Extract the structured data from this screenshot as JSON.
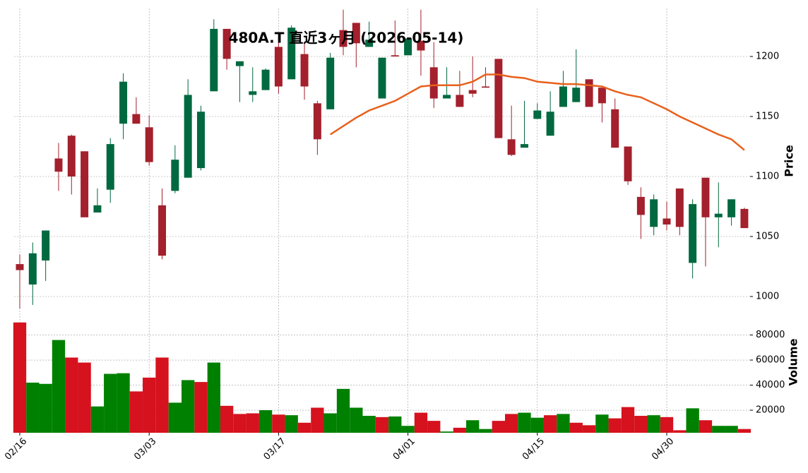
{
  "chart_data": {
    "type": "candlestick",
    "title": "480A.T 直近3ヶ月 (2026-05-14)",
    "categories": [
      "02/16",
      null,
      null,
      null,
      null,
      null,
      null,
      null,
      null,
      null,
      "03/03",
      null,
      null,
      null,
      null,
      null,
      null,
      null,
      null,
      null,
      "03/17",
      null,
      null,
      null,
      null,
      null,
      null,
      null,
      null,
      null,
      "04/01",
      null,
      null,
      null,
      null,
      null,
      null,
      null,
      null,
      null,
      "04/15",
      null,
      null,
      null,
      null,
      null,
      null,
      null,
      null,
      null,
      "04/30",
      null,
      null,
      null,
      null,
      null,
      null
    ],
    "open": [
      1027,
      1010,
      1030,
      1115,
      1134,
      1121,
      1070,
      1089,
      1144,
      1152,
      1141,
      1076,
      1088,
      1099,
      1107,
      1171,
      1223,
      1192,
      1168,
      1172,
      1208,
      1181,
      1202,
      1161,
      1156,
      1222,
      1228,
      1208,
      1165,
      1201,
      1201,
      1213,
      1191,
      1165,
      1168,
      1172,
      1175,
      1198,
      1131,
      1124,
      1148,
      1134,
      1158,
      1162,
      1181,
      1174,
      1156,
      1125,
      1083,
      1058,
      1065,
      1090,
      1028,
      1099,
      1066,
      1066,
      1073
    ],
    "high": [
      1035,
      1045,
      1055,
      1128,
      1135,
      1121,
      1090,
      1132,
      1186,
      1166,
      1151,
      1090,
      1126,
      1181,
      1159,
      1231,
      1223,
      1196,
      1191,
      1190,
      1215,
      1226,
      1211,
      1163,
      1203,
      1239,
      1228,
      1229,
      1199,
      1230,
      1215,
      1239,
      1212,
      1191,
      1188,
      1200,
      1191,
      1198,
      1159,
      1163,
      1161,
      1171,
      1188,
      1206,
      1181,
      1174,
      1165,
      1125,
      1091,
      1085,
      1079,
      1090,
      1081,
      1099,
      1095,
      1081,
      1074
    ],
    "low": [
      990,
      993,
      1013,
      1088,
      1085,
      1066,
      1070,
      1078,
      1131,
      1144,
      1109,
      1031,
      1086,
      1099,
      1105,
      1171,
      1189,
      1162,
      1162,
      1172,
      1169,
      1181,
      1164,
      1118,
      1156,
      1201,
      1191,
      1208,
      1165,
      1200,
      1201,
      1184,
      1157,
      1165,
      1158,
      1166,
      1174,
      1132,
      1117,
      1124,
      1148,
      1134,
      1158,
      1162,
      1158,
      1145,
      1124,
      1093,
      1048,
      1051,
      1055,
      1051,
      1015,
      1025,
      1041,
      1059,
      1057
    ],
    "close": [
      1022,
      1036,
      1055,
      1104,
      1100,
      1066,
      1076,
      1127,
      1179,
      1144,
      1112,
      1034,
      1114,
      1168,
      1154,
      1223,
      1198,
      1196,
      1171,
      1189,
      1175,
      1224,
      1175,
      1131,
      1199,
      1208,
      1211,
      1214,
      1199,
      1200,
      1215,
      1205,
      1165,
      1168,
      1158,
      1169,
      1174,
      1132,
      1118,
      1127,
      1155,
      1154,
      1175,
      1174,
      1158,
      1161,
      1124,
      1096,
      1068,
      1081,
      1060,
      1058,
      1077,
      1066,
      1069,
      1081,
      1057
    ],
    "up_color": "#006940",
    "down_color": "#a3202c",
    "ylabel": "Price",
    "ylim": [
      990,
      1240
    ],
    "yticks": [
      1000,
      1050,
      1100,
      1150,
      1200
    ],
    "grid": true,
    "ma": {
      "color": "#e8601c",
      "values": [
        null,
        null,
        null,
        null,
        null,
        null,
        null,
        null,
        null,
        null,
        null,
        null,
        null,
        null,
        null,
        null,
        null,
        null,
        null,
        null,
        null,
        null,
        null,
        null,
        1135,
        1142,
        1149,
        1155,
        1159,
        1163,
        1169,
        1175,
        1176,
        1176,
        1176,
        1179,
        1185,
        1185,
        1183,
        1182,
        1179,
        1178,
        1177,
        1177,
        1176,
        1175,
        1171,
        1168,
        1166,
        1161,
        1156,
        1150,
        1145,
        1140,
        1135,
        1131,
        1122
      ]
    },
    "volume": {
      "ylabel": "Volume",
      "values": [
        90000,
        42000,
        41000,
        76000,
        62000,
        58000,
        23000,
        49000,
        49500,
        35000,
        46000,
        62000,
        26000,
        44000,
        42500,
        58000,
        23500,
        17000,
        17500,
        20000,
        16500,
        16000,
        10000,
        22000,
        17500,
        37000,
        22000,
        15500,
        14500,
        15000,
        7500,
        18000,
        11500,
        3000,
        6000,
        12000,
        5000,
        11500,
        17000,
        18000,
        14000,
        16000,
        17000,
        10000,
        8000,
        16500,
        13500,
        22500,
        15500,
        16000,
        14500,
        4000,
        21500,
        12000,
        7500,
        7500,
        5000
      ],
      "ylim": [
        2000,
        95500
      ],
      "yticks": [
        20000,
        40000,
        60000,
        80000
      ],
      "up_color": "#008000",
      "down_color": "#d5121e"
    }
  }
}
